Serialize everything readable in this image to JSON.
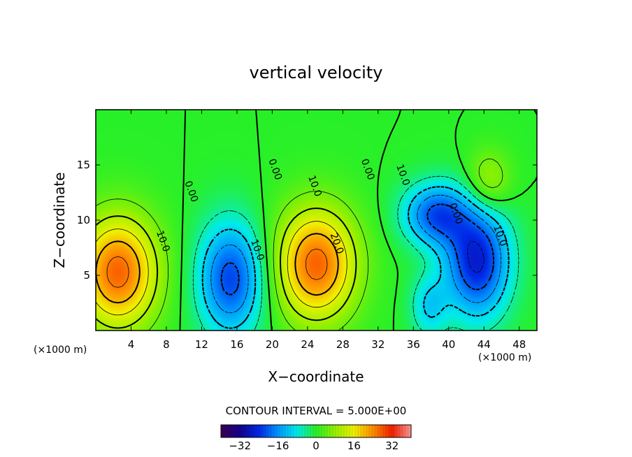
{
  "chart_data": {
    "type": "heatmap",
    "title": "vertical velocity",
    "xlabel": "X−coordinate",
    "ylabel": "Z−coordinate",
    "x_unit": "(×1000 m)",
    "z_unit": "(×1000 m)",
    "xlim": [
      0,
      50
    ],
    "ylim": [
      0,
      20
    ],
    "x_ticks": [
      4,
      8,
      12,
      16,
      20,
      24,
      28,
      32,
      36,
      40,
      44,
      48
    ],
    "y_ticks": [
      5,
      10,
      15
    ],
    "x_tick_labels": [
      "4",
      "8",
      "12",
      "16",
      "20",
      "24",
      "28",
      "32",
      "36",
      "40",
      "44",
      "48"
    ],
    "y_tick_labels": [
      "5",
      "10",
      "15"
    ],
    "contour_interval_text": "CONTOUR INTERVAL = 5.000E+00",
    "colorbar": {
      "range": [
        -40,
        40
      ],
      "tick_labels": [
        "−32",
        "−16",
        "0",
        "16",
        "32"
      ],
      "tick_values": [
        -32,
        -16,
        0,
        16,
        32
      ]
    },
    "features": [
      {
        "kind": "updraft",
        "x": 2.5,
        "z": 5.3,
        "peak": 27
      },
      {
        "kind": "downdraft",
        "x": 15.3,
        "z": 4.7,
        "peak": -22
      },
      {
        "kind": "updraft",
        "x": 25.0,
        "z": 6.0,
        "peak": 27
      },
      {
        "kind": "downdraft",
        "x": 38.5,
        "z": 10.5,
        "peak": -20
      },
      {
        "kind": "downdraft",
        "x": 43.2,
        "z": 6.3,
        "peak": -26
      },
      {
        "kind": "downdraft",
        "x": 37.8,
        "z": 2.2,
        "peak": -10
      },
      {
        "kind": "updraft",
        "x": 44.5,
        "z": 13.5,
        "peak": 10
      }
    ],
    "contour_labels": [
      {
        "text": "0.00",
        "x": 10.5,
        "z": 12.5
      },
      {
        "text": "10.0",
        "x": 7.3,
        "z": 8.0
      },
      {
        "text": "10.0",
        "x": 18.0,
        "z": 7.2
      },
      {
        "text": "0.00",
        "x": 20.0,
        "z": 14.5
      },
      {
        "text": "10.0",
        "x": 24.5,
        "z": 13.0
      },
      {
        "text": "20.0",
        "x": 27.0,
        "z": 7.8
      },
      {
        "text": "0.00",
        "x": 30.5,
        "z": 14.5
      },
      {
        "text": "10.0",
        "x": 34.5,
        "z": 14.0
      },
      {
        "text": "0.00",
        "x": 40.5,
        "z": 10.5
      },
      {
        "text": "10.0",
        "x": 45.5,
        "z": 8.5
      }
    ],
    "grid": false,
    "legend": "bottom"
  }
}
